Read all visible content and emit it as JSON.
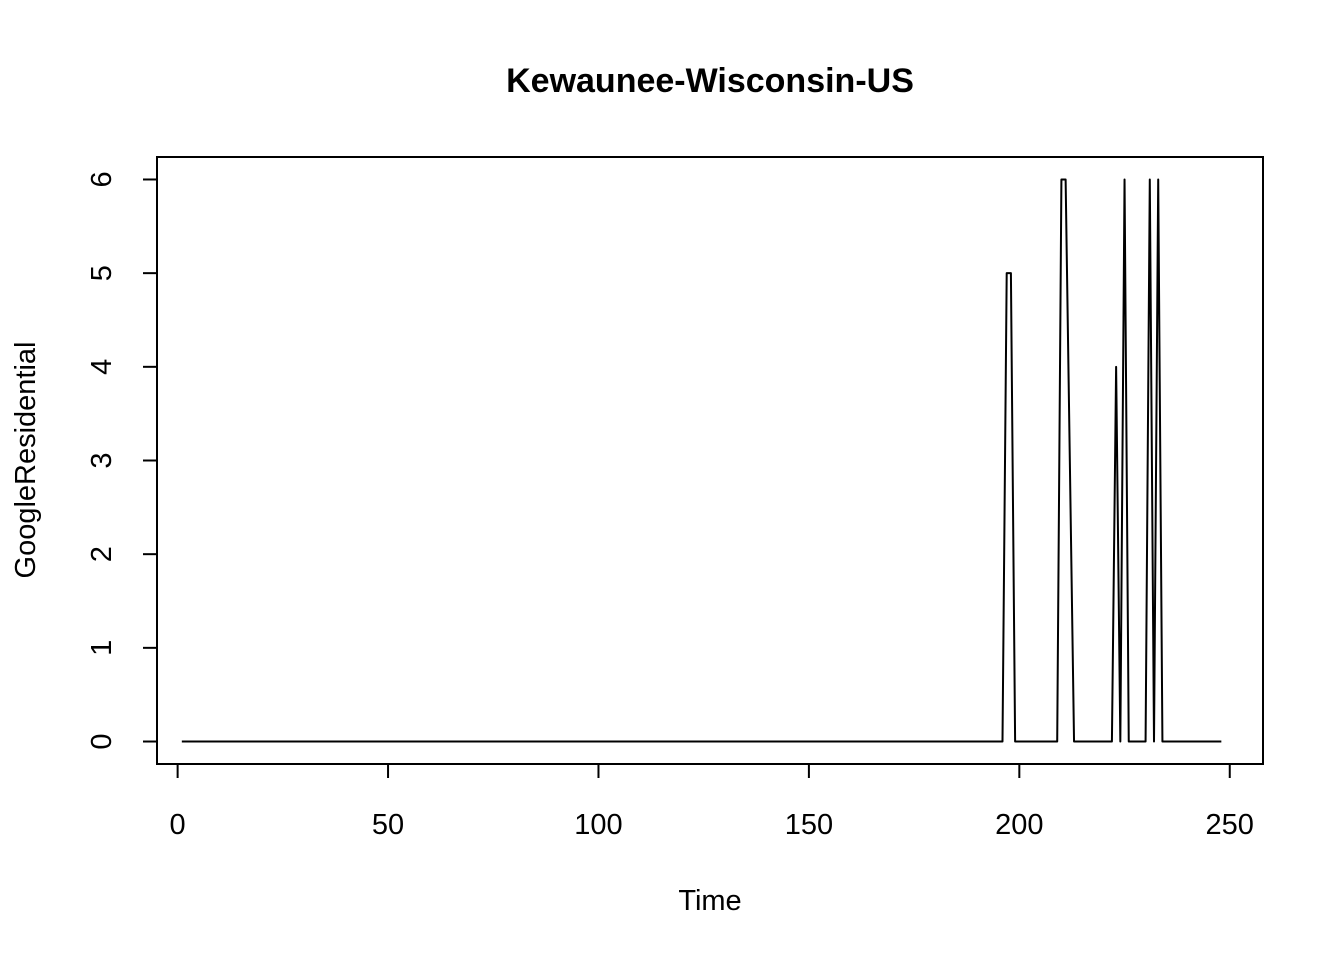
{
  "chart_data": {
    "type": "line",
    "title": "Kewaunee-Wisconsin-US",
    "xlabel": "Time",
    "ylabel": "GoogleResidential",
    "xlim": [
      -4.9,
      257.9
    ],
    "ylim": [
      -0.24,
      6.24
    ],
    "xticks": [
      0,
      50,
      100,
      150,
      200,
      250
    ],
    "yticks": [
      0,
      1,
      2,
      3,
      4,
      5,
      6
    ],
    "xtick_labels": [
      "0",
      "50",
      "100",
      "150",
      "200",
      "250"
    ],
    "ytick_labels": [
      "0",
      "1",
      "2",
      "3",
      "4",
      "5",
      "6"
    ],
    "grid": false,
    "legend": "none",
    "line_color": "#000000",
    "series": [
      {
        "x": [
          1,
          196,
          197,
          198,
          199,
          209,
          210,
          211,
          212,
          213,
          222,
          223,
          224,
          225,
          226,
          230,
          231,
          232,
          233,
          234,
          248
        ],
        "y": [
          0,
          0,
          5,
          5,
          0,
          0,
          6,
          6,
          3,
          0,
          0,
          4,
          0,
          6,
          0,
          0,
          6,
          0,
          6,
          0,
          0
        ]
      }
    ]
  }
}
